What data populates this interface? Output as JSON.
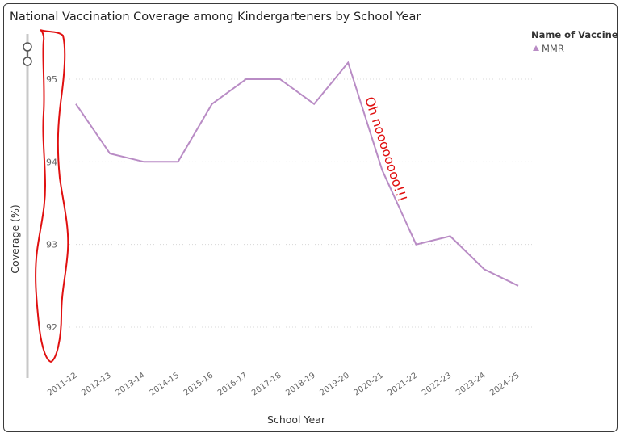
{
  "chart_data": {
    "type": "line",
    "title": "National Vaccination Coverage among Kindergarteners by School Year",
    "xlabel": "School Year",
    "ylabel": "Coverage (%)",
    "categories": [
      "2011-12",
      "2012-13",
      "2013-14",
      "2014-15",
      "2015-16",
      "2016-17",
      "2017-18",
      "2018-19",
      "2019-20",
      "2020-21",
      "2021-22",
      "2022-23",
      "2023-24",
      "2024-25"
    ],
    "series": [
      {
        "name": "MMR",
        "values": [
          94.7,
          94.1,
          94.0,
          94.0,
          94.7,
          95.0,
          95.0,
          94.7,
          95.2,
          93.9,
          93.0,
          93.1,
          92.7,
          92.5
        ]
      }
    ],
    "yticks": [
      92,
      93,
      94,
      95
    ],
    "ylim": [
      91.6,
      95.4
    ],
    "legend_title": "Name of Vaccine",
    "legend_position": "top-right",
    "grid": "horizontal dotted",
    "line_color": "#b98cc5",
    "annotation_text": "Oh noooooooo!!!",
    "annotation_color": "#e01010"
  }
}
